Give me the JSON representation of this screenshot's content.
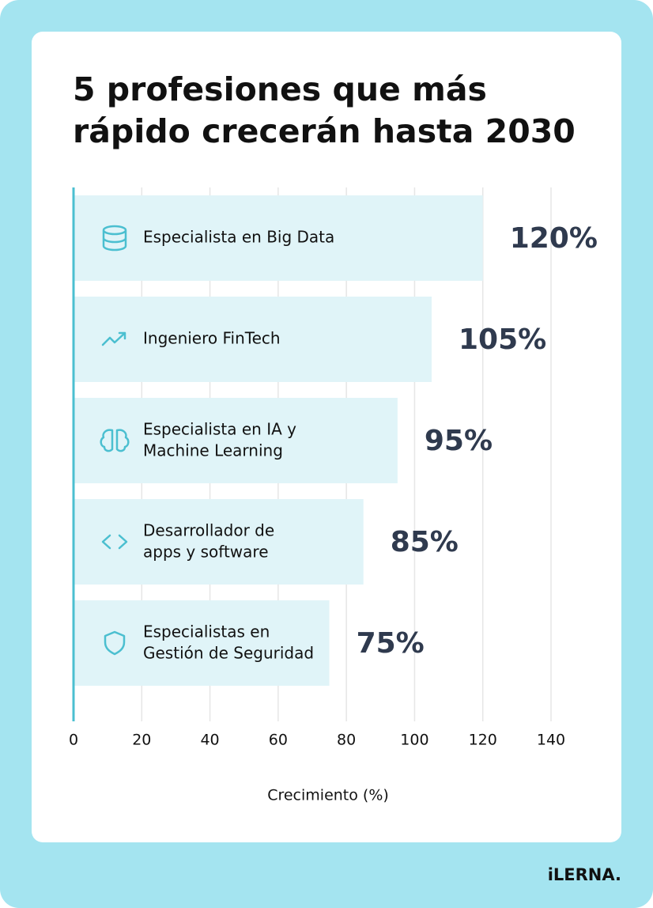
{
  "chart_data": {
    "type": "barh",
    "title": [
      "5 profesiones que más",
      "rápido crecerán hasta 2030"
    ],
    "categories": [
      "Especialista en Big Data",
      "Ingeniero FinTech",
      "Especialista en IA y\nMachine Learning",
      "Desarrollador de\napps y software",
      "Especialistas en\nGestión de Seguridad"
    ],
    "values": [
      120,
      105,
      95,
      85,
      75
    ],
    "value_labels": [
      "120%",
      "105%",
      "95%",
      "85%",
      "75%"
    ],
    "color": "#e0f4f8",
    "xlim": [
      0,
      140
    ],
    "xticks": [
      0,
      20,
      40,
      60,
      80,
      100,
      120,
      140
    ],
    "xlabel": "Crecimiento (%)",
    "grid": true
  },
  "brand": "iLERNA."
}
